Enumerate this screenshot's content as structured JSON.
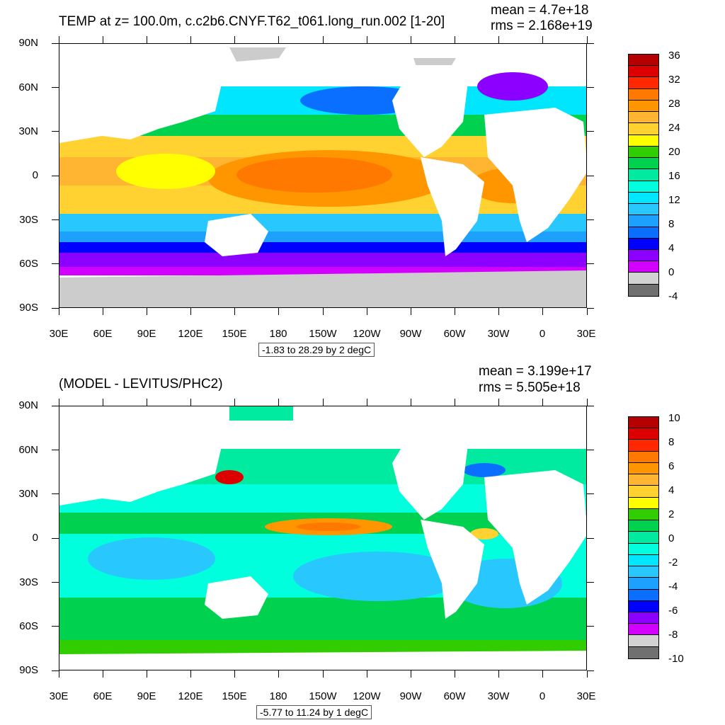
{
  "panels": [
    {
      "title": "TEMP at z= 100.0m, c.c2b6.CNYF.T62_t061.long_run.002 [1-20]",
      "mean": "mean = 4.7e+18",
      "rms": "rms = 2.168e+19",
      "range": "-1.83 to 28.29 by 2 degC",
      "colorbar_labels": [
        "36",
        "32",
        "28",
        "24",
        "20",
        "16",
        "12",
        "8",
        "4",
        "0",
        "-4"
      ],
      "colorbar_colors": [
        "#b40000",
        "#dc0000",
        "#ff2800",
        "#ff7800",
        "#ff9600",
        "#ffb432",
        "#ffd232",
        "#ffff00",
        "#32cd00",
        "#00d250",
        "#00eba0",
        "#00ffdc",
        "#00e6ff",
        "#28c8ff",
        "#1ea0ff",
        "#0a6eff",
        "#0000ff",
        "#8c00ff",
        "#d200ff",
        "#d2d2d2",
        "#707070"
      ]
    },
    {
      "title": "(MODEL - LEVITUS/PHC2)",
      "mean": "mean = 3.199e+17",
      "rms": "rms = 5.505e+18",
      "range": "-5.77 to 11.24 by 1 degC",
      "colorbar_labels": [
        "10",
        "8",
        "6",
        "4",
        "2",
        "0",
        "-2",
        "-4",
        "-6",
        "-8",
        "-10"
      ],
      "colorbar_colors": [
        "#b40000",
        "#dc0000",
        "#ff2800",
        "#ff7800",
        "#ff9600",
        "#ffb432",
        "#ffd232",
        "#ffff00",
        "#32cd00",
        "#00d250",
        "#00eba0",
        "#00ffdc",
        "#00e6ff",
        "#28c8ff",
        "#1ea0ff",
        "#0a6eff",
        "#0000ff",
        "#8c00ff",
        "#d200ff",
        "#d2d2d2",
        "#707070"
      ]
    }
  ],
  "lat_labels": [
    "90N",
    "60N",
    "30N",
    "0",
    "30S",
    "60S",
    "90S"
  ],
  "lon_labels": [
    "30E",
    "60E",
    "90E",
    "120E",
    "150E",
    "180",
    "150W",
    "120W",
    "90W",
    "60W",
    "30W",
    "0",
    "30E"
  ],
  "land_color": "#ffffff",
  "ice_color": "#cccccc"
}
